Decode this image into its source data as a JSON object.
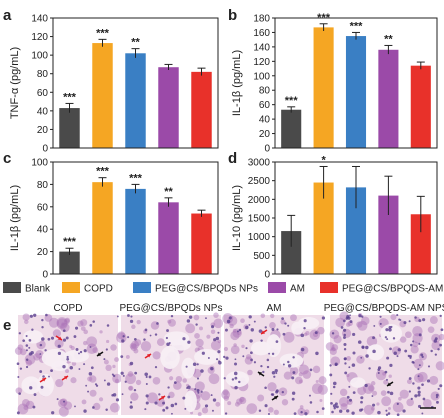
{
  "colors": {
    "blank": "#4a4a4a",
    "copd": "#f5a623",
    "peg_np": "#3a7fc4",
    "am": "#9b4aa8",
    "peg_am": "#e8312a",
    "tissue_bg": "#efdce8",
    "tissue_stain": "#a96fb5",
    "nucleus": "#5a3f8f",
    "red_arrow": "#e21f26",
    "black_arrow": "#111111"
  },
  "legend": {
    "items": [
      {
        "label": "Blank",
        "color_key": "blank"
      },
      {
        "label": "COPD",
        "color_key": "copd"
      },
      {
        "label": "PEG@CS/BPQDs NPs",
        "color_key": "peg_np"
      },
      {
        "label": "AM",
        "color_key": "am"
      },
      {
        "label": "PEG@CS/BPQDS-AM NPS",
        "color_key": "peg_am"
      }
    ]
  },
  "chart_data": [
    {
      "panel": "a",
      "type": "bar",
      "categories": [
        "Blank",
        "COPD",
        "PEG@CS/BPQDs NPs",
        "AM",
        "PEG@CS/BPQDS-AM NPS"
      ],
      "values": [
        43,
        113,
        102,
        87,
        82
      ],
      "errors": [
        5,
        4,
        5,
        3,
        4
      ],
      "significance": [
        "***",
        "***",
        "**",
        "",
        ""
      ],
      "ylabel": "TNF-α (pg/mL)",
      "ylim": [
        0,
        140
      ],
      "yticks": [
        0,
        20,
        40,
        60,
        80,
        100,
        120,
        140
      ]
    },
    {
      "panel": "b",
      "type": "bar",
      "categories": [
        "Blank",
        "COPD",
        "PEG@CS/BPQDs NPs",
        "AM",
        "PEG@CS/BPQDS-AM NPS"
      ],
      "values": [
        53,
        167,
        155,
        136,
        114
      ],
      "errors": [
        4,
        5,
        5,
        6,
        5
      ],
      "significance": [
        "***",
        "***",
        "***",
        "**",
        ""
      ],
      "ylabel": "IL-1β (pg/mL)",
      "ylim": [
        0,
        180
      ],
      "yticks": [
        0,
        20,
        40,
        60,
        80,
        100,
        120,
        140,
        160,
        180
      ]
    },
    {
      "panel": "c",
      "type": "bar",
      "categories": [
        "Blank",
        "COPD",
        "PEG@CS/BPQDs NPs",
        "AM",
        "PEG@CS/BPQDS-AM NPS"
      ],
      "values": [
        20,
        82,
        76,
        64,
        54
      ],
      "errors": [
        3,
        4,
        4,
        4,
        3
      ],
      "significance": [
        "***",
        "***",
        "***",
        "**",
        ""
      ],
      "ylabel": "IL-1β (pg/mL)",
      "ylim": [
        0,
        100
      ],
      "yticks": [
        0,
        20,
        40,
        60,
        80,
        100
      ]
    },
    {
      "panel": "d",
      "type": "bar",
      "categories": [
        "Blank",
        "COPD",
        "PEG@CS/BPQDs NPs",
        "AM",
        "PEG@CS/BPQDS-AM NPS"
      ],
      "values": [
        1150,
        2450,
        2320,
        2100,
        1600
      ],
      "errors": [
        420,
        430,
        560,
        520,
        480
      ],
      "significance": [
        "",
        "*",
        "",
        "",
        ""
      ],
      "ylabel": "IL-10 (pg/mL)",
      "ylim": [
        0,
        3000
      ],
      "yticks": [
        0,
        500,
        1000,
        1500,
        2000,
        2500,
        3000
      ]
    }
  ],
  "panel_e": {
    "letter": "e",
    "images": [
      {
        "title": "COPD"
      },
      {
        "title": "PEG@CS/BPQDs NPs"
      },
      {
        "title": "AM"
      },
      {
        "title": "PEG@CS/BPQDS-AM NPS"
      }
    ]
  }
}
